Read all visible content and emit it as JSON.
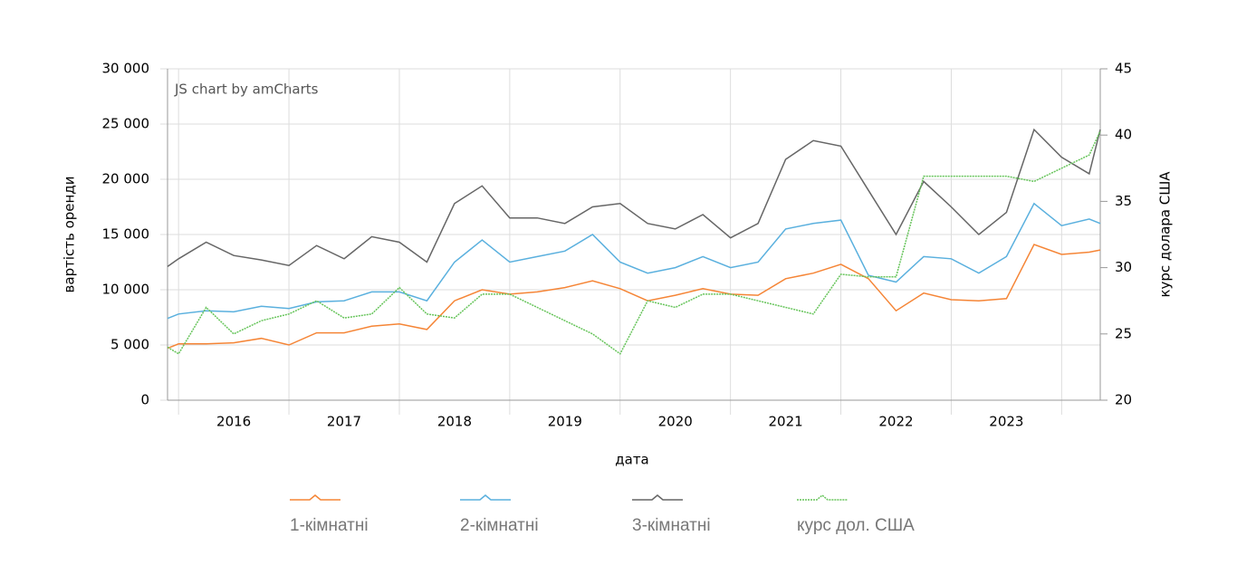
{
  "chart_data": {
    "type": "line",
    "credit": "JS chart by amCharts",
    "x_label": "дата",
    "y_label": "вартість оренди",
    "y2_label": "курс долара США",
    "x": [
      2015.9,
      2016,
      2016.25,
      2016.5,
      2016.75,
      2017,
      2017.25,
      2017.5,
      2017.75,
      2018,
      2018.25,
      2018.5,
      2018.75,
      2019,
      2019.25,
      2019.5,
      2019.75,
      2020,
      2020.25,
      2020.5,
      2020.75,
      2021,
      2021.25,
      2021.5,
      2021.75,
      2022,
      2022.25,
      2022.5,
      2022.75,
      2023,
      2023.25,
      2023.5,
      2023.75,
      2024,
      2024.25,
      2024.35
    ],
    "xlim": [
      2015.9,
      2024.35
    ],
    "xticks": [
      {
        "value": 2016.5,
        "label": "2016"
      },
      {
        "value": 2017.5,
        "label": "2017"
      },
      {
        "value": 2018.5,
        "label": "2018"
      },
      {
        "value": 2019.5,
        "label": "2019"
      },
      {
        "value": 2020.5,
        "label": "2020"
      },
      {
        "value": 2021.5,
        "label": "2021"
      },
      {
        "value": 2022.5,
        "label": "2022"
      },
      {
        "value": 2023.5,
        "label": "2023"
      }
    ],
    "xgrid": [
      2016,
      2017,
      2018,
      2019,
      2020,
      2021,
      2022,
      2023,
      2024
    ],
    "ylim": [
      0,
      30000
    ],
    "yticks": [
      0,
      {
        "value": 5000,
        "label": "5 000"
      },
      {
        "value": 10000,
        "label": "10 000"
      },
      {
        "value": 15000,
        "label": "15 000"
      },
      {
        "value": 20000,
        "label": "20 000"
      },
      {
        "value": 25000,
        "label": "25 000"
      },
      {
        "value": 30000,
        "label": "30 000"
      }
    ],
    "y2lim": [
      20,
      45
    ],
    "y2ticks": [
      20,
      25,
      30,
      35,
      40,
      45
    ],
    "grid": true,
    "legend": "bottom",
    "series": [
      {
        "name": "1-кімнатні",
        "color": "#f58536",
        "values": [
          4700,
          5100,
          5100,
          5200,
          5600,
          5000,
          6100,
          6100,
          6700,
          6900,
          6400,
          9000,
          10000,
          9600,
          9800,
          10200,
          10800,
          10100,
          9000,
          9500,
          10100,
          9600,
          9500,
          11000,
          11500,
          12300,
          11000,
          8100,
          9700,
          9100,
          9000,
          9200,
          14100,
          13200,
          13400,
          13600
        ]
      },
      {
        "name": "2-кімнатні",
        "color": "#5ab0de",
        "values": [
          7400,
          7800,
          8100,
          8000,
          8500,
          8300,
          8900,
          9000,
          9800,
          9800,
          9000,
          12500,
          14500,
          12500,
          13000,
          13500,
          15000,
          12500,
          11500,
          12000,
          13000,
          12000,
          12500,
          15500,
          16000,
          16300,
          11300,
          10700,
          13000,
          12800,
          11500,
          13000,
          17800,
          15800,
          16400,
          16000
        ]
      },
      {
        "name": "3-кімнатні",
        "color": "#666666",
        "values": [
          12100,
          12800,
          14300,
          13100,
          12700,
          12200,
          14000,
          12800,
          14800,
          14300,
          12500,
          17800,
          19400,
          16500,
          16500,
          16000,
          17500,
          17800,
          16000,
          15500,
          16800,
          14700,
          16000,
          21800,
          23500,
          23000,
          19000,
          15000,
          19800,
          17500,
          15000,
          17000,
          24500,
          22000,
          20500,
          24500
        ]
      },
      {
        "name": "курс дол. США",
        "color": "#66c45a",
        "axis": "y2",
        "dashed": true,
        "values": [
          24,
          23.5,
          27,
          25,
          26,
          26.5,
          27.5,
          26.2,
          26.5,
          28.5,
          26.5,
          26.2,
          28,
          28,
          27,
          26,
          25,
          23.5,
          27.5,
          27,
          28,
          28,
          27.5,
          27,
          26.5,
          29.5,
          29.3,
          29.3,
          36.9,
          36.9,
          36.9,
          36.9,
          36.5,
          37.5,
          38.5,
          40.3
        ]
      }
    ]
  }
}
